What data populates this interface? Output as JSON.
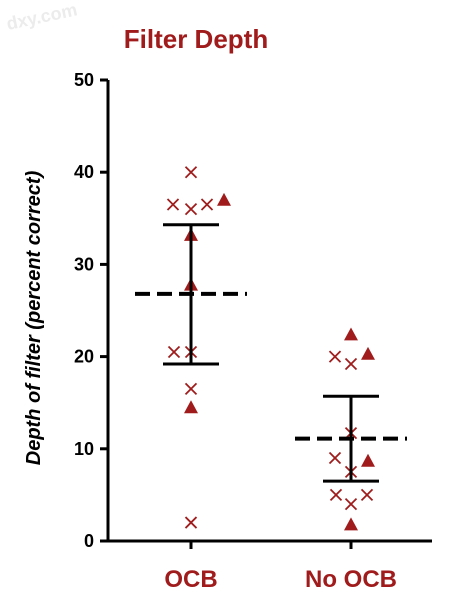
{
  "watermark": "dxy.com",
  "chart_data": {
    "type": "scatter",
    "title": "Filter Depth",
    "ylabel": "Depth of filter (percent correct)",
    "xlabel": "",
    "categories": [
      "OCB",
      "No OCB"
    ],
    "ylim": [
      0,
      50
    ],
    "yticks": [
      0,
      10,
      20,
      30,
      40,
      50
    ],
    "grid": false,
    "colors": {
      "title": "#a01c1c",
      "labels": "#a01c1c",
      "points": "#a01c1c",
      "axis": "#000000"
    },
    "groups": [
      {
        "category": "OCB",
        "mean": 26.8,
        "error_bar": [
          19.2,
          34.3
        ],
        "points": [
          {
            "marker": "x",
            "y": 40.0,
            "dx": 0
          },
          {
            "marker": "x",
            "y": 36.5,
            "dx": -18
          },
          {
            "marker": "x",
            "y": 36.0,
            "dx": 0
          },
          {
            "marker": "x",
            "y": 36.5,
            "dx": 16
          },
          {
            "marker": "triangle",
            "y": 37.0,
            "dx": 33
          },
          {
            "marker": "triangle",
            "y": 33.2,
            "dx": 0
          },
          {
            "marker": "triangle",
            "y": 27.8,
            "dx": 0
          },
          {
            "marker": "x",
            "y": 20.5,
            "dx": -17
          },
          {
            "marker": "x",
            "y": 20.5,
            "dx": 0
          },
          {
            "marker": "x",
            "y": 16.5,
            "dx": 0
          },
          {
            "marker": "triangle",
            "y": 14.5,
            "dx": 0
          },
          {
            "marker": "x",
            "y": 2.0,
            "dx": 0
          }
        ]
      },
      {
        "category": "No OCB",
        "mean": 11.1,
        "error_bar": [
          6.5,
          15.7
        ],
        "points": [
          {
            "marker": "triangle",
            "y": 22.4,
            "dx": 0
          },
          {
            "marker": "x",
            "y": 20.0,
            "dx": -16
          },
          {
            "marker": "triangle",
            "y": 20.3,
            "dx": 17
          },
          {
            "marker": "x",
            "y": 19.2,
            "dx": 0
          },
          {
            "marker": "x",
            "y": 11.7,
            "dx": 0
          },
          {
            "marker": "x",
            "y": 9.0,
            "dx": -16
          },
          {
            "marker": "triangle",
            "y": 8.7,
            "dx": 17
          },
          {
            "marker": "x",
            "y": 7.5,
            "dx": 0
          },
          {
            "marker": "x",
            "y": 5.0,
            "dx": -15
          },
          {
            "marker": "x",
            "y": 4.0,
            "dx": 0
          },
          {
            "marker": "x",
            "y": 5.0,
            "dx": 16
          },
          {
            "marker": "triangle",
            "y": 1.8,
            "dx": 0
          }
        ]
      }
    ]
  }
}
